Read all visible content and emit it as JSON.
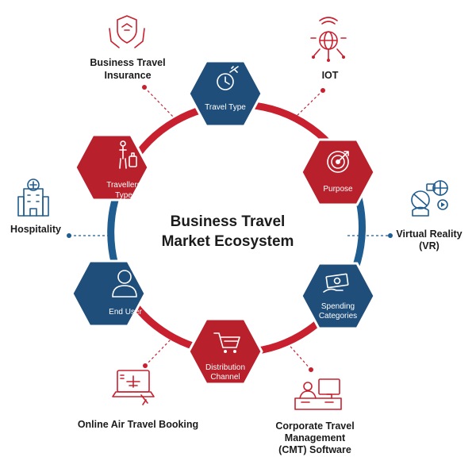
{
  "title": {
    "line1": "Business Travel",
    "line2": "Market Ecosystem"
  },
  "colors": {
    "red": "#b8202b",
    "blue": "#1f4e7a",
    "ring_red": "#c8202f",
    "ring_blue": "#1f5c8f"
  },
  "segments": {
    "travel_type": "Travel Type",
    "purpose": "Purpose",
    "spending": {
      "line1": "Spending",
      "line2": "Categories"
    },
    "distribution": {
      "line1": "Distribution",
      "line2": "Channel"
    },
    "end_user": "End User",
    "travellers": {
      "line1": "Travellers",
      "line2": "Type"
    }
  },
  "technologies": {
    "insurance": {
      "line1": "Business Travel",
      "line2": "Insurance",
      "icon": "shield-hands-icon"
    },
    "iot": {
      "line1": "IOT",
      "icon": "globe-network-icon"
    },
    "vr": {
      "line1": "Virtual Reality",
      "line2": "(VR)",
      "icon": "vr-headset-icon"
    },
    "cmt": {
      "line1": "Corporate Travel",
      "line2": "Management",
      "line3": "(CMT) Software",
      "icon": "desk-computer-icon"
    },
    "booking": {
      "line1": "Online Air Travel Booking",
      "icon": "laptop-plane-icon"
    },
    "hospitality": {
      "line1": "Hospitality",
      "icon": "hotel-building-icon"
    }
  }
}
